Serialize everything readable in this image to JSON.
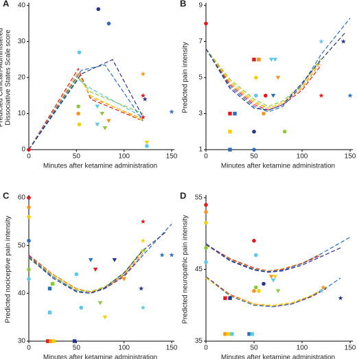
{
  "chart_data": [
    {
      "type": "scatter",
      "panel_label": "A",
      "ylabel": [
        "Predicted Clinician-Administered",
        "Dissociative States Scale score"
      ],
      "xlabel": "Minutes after ketamine administration",
      "xlim": [
        0,
        150
      ],
      "ylim": [
        0,
        40
      ],
      "xticks": [
        0,
        50,
        100,
        150
      ],
      "yticks": [
        0,
        10,
        20,
        30,
        40
      ],
      "lines": [
        {
          "color": "#e31a1c",
          "x": [
            0,
            52,
            65,
            120
          ],
          "y": [
            0,
            22.5,
            14,
            8
          ]
        },
        {
          "color": "#f7941d",
          "x": [
            0,
            52,
            65,
            120
          ],
          "y": [
            0,
            21.5,
            14.5,
            8.5
          ]
        },
        {
          "color": "#f5d000",
          "x": [
            0,
            52,
            65,
            120
          ],
          "y": [
            0,
            20.5,
            15,
            8
          ]
        },
        {
          "color": "#8dc63f",
          "x": [
            0,
            52,
            65,
            120
          ],
          "y": [
            0,
            20,
            16,
            10
          ]
        },
        {
          "color": "#5bc8e8",
          "x": [
            0,
            52,
            65,
            120
          ],
          "y": [
            0,
            19.5,
            17,
            9
          ]
        },
        {
          "color": "#2a6ebb",
          "x": [
            0,
            55,
            80,
            120
          ],
          "y": [
            0,
            22,
            23.5,
            8
          ]
        },
        {
          "color": "#27328a",
          "x": [
            0,
            55,
            88,
            120
          ],
          "y": [
            0,
            21,
            25,
            9
          ]
        }
      ],
      "points": {
        "x": [
          73,
          84,
          53,
          52,
          52,
          53,
          72,
          77,
          84,
          72,
          80,
          120,
          120,
          122,
          120,
          150,
          124,
          124,
          0
        ],
        "y": [
          39,
          35,
          27,
          12,
          10,
          7,
          12,
          10,
          8,
          7,
          6,
          21,
          15,
          14,
          9,
          10.5,
          2,
          1,
          0
        ],
        "colors": [
          "#27328a",
          "#2a6ebb",
          "#5bc8e8",
          "#8dc63f",
          "#f7941d",
          "#f5d000",
          "#5bc8e8",
          "#8dc63f",
          "#f7941d",
          "#5bc8e8",
          "#8dc63f",
          "#f7941d",
          "#e31a1c",
          "#27328a",
          "#e31a1c",
          "#2a6ebb",
          "#f5d000",
          "#5bc8e8",
          "#e31a1c"
        ],
        "markers": [
          "circle",
          "circle",
          "circle",
          "circle",
          "circle",
          "circle",
          "triangle",
          "triangle",
          "triangle",
          "triangle",
          "triangle",
          "star",
          "star",
          "star",
          "star",
          "star",
          "triangle",
          "circle",
          "circle"
        ]
      }
    },
    {
      "type": "scatter",
      "panel_label": "B",
      "ylabel": [
        "Predicted pain intensity"
      ],
      "xlabel": "Minutes after ketamine administration",
      "xlim": [
        0,
        150
      ],
      "ylim": [
        1,
        9
      ],
      "xticks": [
        0,
        50,
        100,
        150
      ],
      "yticks": [
        1,
        3,
        5,
        7,
        9
      ],
      "lines": [
        {
          "color": "#e31a1c",
          "x": [
            0,
            25,
            50,
            65,
            80,
            100,
            120
          ],
          "y": [
            6.6,
            4.6,
            3.5,
            3.2,
            3.5,
            4.3,
            5.7
          ]
        },
        {
          "color": "#f7941d",
          "x": [
            0,
            25,
            50,
            65,
            80,
            100,
            120
          ],
          "y": [
            6.6,
            4.7,
            3.6,
            3.3,
            3.6,
            4.4,
            5.9
          ]
        },
        {
          "color": "#f5d000",
          "x": [
            0,
            25,
            50,
            65,
            80,
            100,
            120
          ],
          "y": [
            6.6,
            4.8,
            3.7,
            3.3,
            3.6,
            4.5,
            6
          ]
        },
        {
          "color": "#8dc63f",
          "x": [
            0,
            25,
            50,
            65,
            80,
            100,
            120
          ],
          "y": [
            6.6,
            4.9,
            3.8,
            3.4,
            3.7,
            4.6,
            6.1
          ]
        },
        {
          "color": "#2a6ebb",
          "x": [
            0,
            25,
            50,
            65,
            80,
            100,
            120,
            150
          ],
          "y": [
            6.6,
            4.5,
            3.4,
            3.1,
            3.4,
            4.6,
            6.3,
            8.3
          ]
        },
        {
          "color": "#27328a",
          "x": [
            0,
            25,
            50,
            65,
            80,
            100,
            120,
            145
          ],
          "y": [
            6.6,
            4.4,
            3.3,
            3.2,
            3.5,
            4.7,
            6,
            7.5
          ]
        }
      ],
      "points": {
        "x": [
          0,
          25,
          30,
          25,
          25,
          50,
          55,
          52,
          52,
          62,
          68,
          72,
          75,
          70,
          50,
          50,
          82,
          120,
          120,
          143,
          150,
          60
        ],
        "y": [
          8,
          3,
          3,
          2,
          1,
          6,
          6,
          5,
          4,
          4,
          6,
          6,
          5,
          4,
          2,
          1,
          2,
          7,
          4,
          7,
          4,
          3
        ],
        "colors": [
          "#e31a1c",
          "#e31a1c",
          "#2a6ebb",
          "#f5d000",
          "#2a6ebb",
          "#e31a1c",
          "#f7941d",
          "#f5d000",
          "#5bc8e8",
          "#e31a1c",
          "#5bc8e8",
          "#5bc8e8",
          "#f7941d",
          "#2a6ebb",
          "#27328a",
          "#2a6ebb",
          "#8dc63f",
          "#5bc8e8",
          "#e31a1c",
          "#27328a",
          "#2a6ebb",
          "#f7941d"
        ],
        "markers": [
          "circle",
          "square",
          "square",
          "square",
          "square",
          "square",
          "square",
          "circle",
          "circle",
          "circle",
          "triangle",
          "triangle",
          "triangle",
          "triangle",
          "circle",
          "circle",
          "circle",
          "star",
          "star",
          "star",
          "star",
          "circle"
        ]
      }
    },
    {
      "type": "scatter",
      "panel_label": "C",
      "ylabel": [
        "Predicted nociceptive pain intensity"
      ],
      "xlabel": "Minutes after ketamine administration",
      "xlim": [
        0,
        150
      ],
      "ylim": [
        30,
        60
      ],
      "xticks": [
        0,
        50,
        100,
        150
      ],
      "yticks": [
        30,
        40,
        50,
        60
      ],
      "lines": [
        {
          "color": "#e31a1c",
          "x": [
            0,
            25,
            50,
            65,
            80,
            100,
            120
          ],
          "y": [
            48,
            44,
            41,
            40.2,
            41,
            43.5,
            48
          ]
        },
        {
          "color": "#f7941d",
          "x": [
            0,
            25,
            50,
            65,
            80,
            100,
            120
          ],
          "y": [
            47.8,
            44,
            41,
            40.3,
            41.2,
            43.8,
            48.5
          ]
        },
        {
          "color": "#f5d000",
          "x": [
            0,
            25,
            50,
            65,
            80,
            100,
            120
          ],
          "y": [
            47.5,
            43.8,
            40.8,
            40.3,
            41.3,
            44,
            49
          ]
        },
        {
          "color": "#8dc63f",
          "x": [
            0,
            25,
            50,
            65,
            80,
            100,
            120
          ],
          "y": [
            47.3,
            43.5,
            40.6,
            40.4,
            41.4,
            44.2,
            49.3
          ]
        },
        {
          "color": "#2a6ebb",
          "x": [
            0,
            25,
            50,
            65,
            80,
            100,
            120,
            150
          ],
          "y": [
            47.8,
            43.5,
            40.5,
            40,
            41,
            43.8,
            48,
            54.5
          ]
        },
        {
          "color": "#27328a",
          "x": [
            0,
            25,
            50,
            65,
            80,
            100,
            120,
            145
          ],
          "y": [
            47.5,
            43.2,
            40.3,
            40,
            41.2,
            44.3,
            49,
            53
          ]
        }
      ],
      "points": {
        "x": [
          0,
          0,
          0,
          0,
          0,
          0,
          20,
          23,
          26,
          22,
          25,
          22,
          48,
          50,
          55,
          65,
          70,
          75,
          80,
          90,
          100,
          120,
          120,
          121,
          118,
          120,
          140,
          150
        ],
        "y": [
          60,
          58,
          56,
          51,
          45,
          43,
          30,
          30,
          30,
          36,
          42,
          41,
          30,
          44,
          37,
          47,
          45,
          38,
          35,
          47,
          43,
          55,
          51,
          49,
          41,
          37,
          48,
          48
        ],
        "colors": [
          "#e31a1c",
          "#f7941d",
          "#f5d000",
          "#2a6ebb",
          "#8dc63f",
          "#5bc8e8",
          "#e31a1c",
          "#f7941d",
          "#f5d000",
          "#5bc8e8",
          "#8dc63f",
          "#2a6ebb",
          "#27328a",
          "#5bc8e8",
          "#5bc8e8",
          "#2a6ebb",
          "#e31a1c",
          "#8dc63f",
          "#f5d000",
          "#27328a",
          "#f7941d",
          "#e31a1c",
          "#f5d000",
          "#8dc63f",
          "#27328a",
          "#5bc8e8",
          "#2a6ebb",
          "#2a6ebb"
        ],
        "markers": [
          "circle",
          "circle",
          "circle",
          "circle",
          "circle",
          "circle",
          "square",
          "square",
          "square",
          "square",
          "square",
          "square",
          "square",
          "circle",
          "circle",
          "triangle",
          "triangle",
          "triangle",
          "triangle",
          "triangle",
          "triangle",
          "star",
          "star",
          "star",
          "star",
          "star",
          "star",
          "star"
        ]
      }
    },
    {
      "type": "scatter",
      "panel_label": "D",
      "ylabel": [
        "Predicted neuropathic pain intensity"
      ],
      "xlabel": "Minutes after ketamine administration",
      "xlim": [
        0,
        150
      ],
      "ylim": [
        35,
        55
      ],
      "xticks": [
        0,
        50,
        100,
        150
      ],
      "yticks": [
        35,
        45,
        55
      ],
      "lines": [
        {
          "color": "#e31a1c",
          "x": [
            0,
            25,
            50,
            65,
            80,
            100,
            120
          ],
          "y": [
            48.5,
            46.5,
            45.2,
            44.8,
            45,
            45.8,
            47
          ]
        },
        {
          "color": "#f7941d",
          "x": [
            0,
            25,
            50,
            65,
            80,
            100,
            120
          ],
          "y": [
            48.4,
            46.4,
            45.1,
            44.8,
            45.1,
            45.9,
            47.2
          ]
        },
        {
          "color": "#2a6ebb",
          "x": [
            0,
            25,
            50,
            65,
            80,
            100,
            120,
            150
          ],
          "y": [
            48.6,
            46.3,
            45,
            44.7,
            44.9,
            45.8,
            47.2,
            49.5
          ]
        },
        {
          "color": "#27328a",
          "x": [
            0,
            25,
            50,
            65,
            80,
            100,
            120,
            140
          ],
          "y": [
            48.5,
            46.2,
            44.9,
            44.6,
            44.8,
            45.6,
            46.8,
            48
          ]
        },
        {
          "color": "#e31a1c",
          "x": [
            0,
            25,
            50,
            70,
            90,
            110,
            125
          ],
          "y": [
            44,
            41.5,
            40.2,
            39.8,
            40.2,
            41.2,
            42.3
          ]
        },
        {
          "color": "#f7941d",
          "x": [
            0,
            25,
            50,
            70,
            90,
            110,
            125
          ],
          "y": [
            43.9,
            41.4,
            40.1,
            39.9,
            40.3,
            41.3,
            42.5
          ]
        },
        {
          "color": "#f5d000",
          "x": [
            0,
            25,
            50,
            70,
            90,
            110,
            125
          ],
          "y": [
            43.8,
            41.4,
            40.2,
            40,
            40.4,
            41.4,
            42.6
          ]
        },
        {
          "color": "#2a6ebb",
          "x": [
            0,
            25,
            50,
            70,
            90,
            110,
            125,
            140
          ],
          "y": [
            44,
            41.3,
            40,
            39.8,
            40.2,
            41.3,
            42.4,
            43.8
          ]
        }
      ],
      "points": {
        "x": [
          0,
          0,
          0,
          0,
          0,
          20,
          25,
          20,
          23,
          27,
          45,
          48,
          50,
          52,
          52,
          50,
          55,
          60,
          68,
          72,
          70,
          75,
          120,
          122,
          140
        ],
        "y": [
          54,
          53,
          51.5,
          48,
          46,
          41,
          41,
          36,
          36,
          36,
          36,
          36,
          49,
          47,
          42.5,
          42,
          42,
          43,
          44,
          44,
          43.5,
          42,
          42,
          42.5,
          41
        ],
        "colors": [
          "#e31a1c",
          "#f7941d",
          "#f5d000",
          "#8dc63f",
          "#5bc8e8",
          "#e31a1c",
          "#27328a",
          "#f7941d",
          "#f5d000",
          "#5bc8e8",
          "#2a6ebb",
          "#5bc8e8",
          "#e31a1c",
          "#5bc8e8",
          "#8dc63f",
          "#f7941d",
          "#f5d000",
          "#27328a",
          "#f7941d",
          "#f5d000",
          "#5bc8e8",
          "#8dc63f",
          "#5bc8e8",
          "#f7941d",
          "#27328a"
        ],
        "markers": [
          "circle",
          "circle",
          "circle",
          "circle",
          "circle",
          "square",
          "square",
          "square",
          "square",
          "square",
          "square",
          "square",
          "circle",
          "circle",
          "circle",
          "circle",
          "circle",
          "circle",
          "triangle",
          "triangle",
          "triangle",
          "triangle",
          "star",
          "star",
          "star"
        ]
      }
    }
  ]
}
